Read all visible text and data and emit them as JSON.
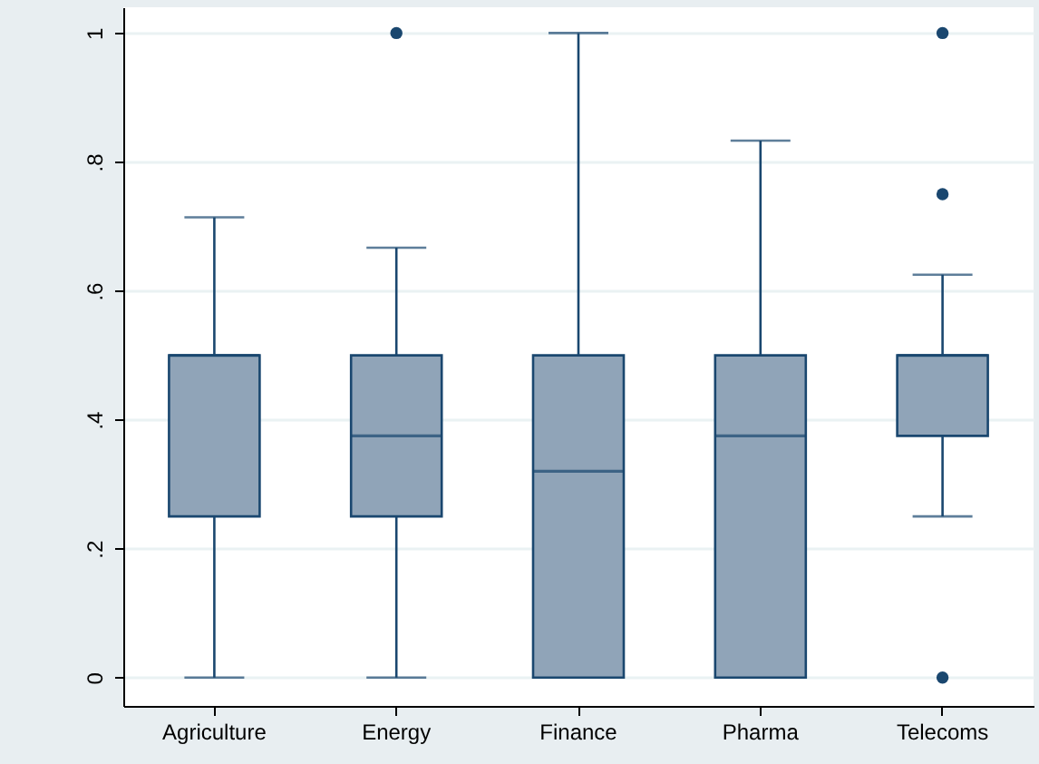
{
  "chart_data": {
    "type": "box",
    "categories": [
      "Agriculture",
      "Energy",
      "Finance",
      "Pharma",
      "Telecoms"
    ],
    "series": [
      {
        "color": "#90a4b8",
        "boxes": [
          {
            "low": 0,
            "q1": 0.25,
            "median": 0.5,
            "q3": 0.5,
            "high": 0.714
          },
          {
            "low": 0,
            "q1": 0.25,
            "median": 0.375,
            "q3": 0.5,
            "high": 0.667,
            "outliers": [
              1
            ]
          },
          {
            "low": 0,
            "q1": 0,
            "median": 0.32,
            "q3": 0.5,
            "high": 1
          },
          {
            "low": 0,
            "q1": 0,
            "median": 0.375,
            "q3": 0.5,
            "high": 0.833
          },
          {
            "low": 0.25,
            "q1": 0.375,
            "median": 0.5,
            "q3": 0.5,
            "high": 0.625,
            "outliers": [
              1,
              0.75,
              0
            ]
          }
        ]
      }
    ],
    "ylim": [
      -0.044,
      1.04
    ],
    "yticks": [
      0,
      {
        "value": 0.2,
        "label": ".2"
      },
      {
        "value": 0.4,
        "label": ".4"
      },
      {
        "value": 0.6,
        "label": ".6"
      },
      {
        "value": 0.8,
        "label": ".8"
      },
      1
    ],
    "grid": "y"
  }
}
